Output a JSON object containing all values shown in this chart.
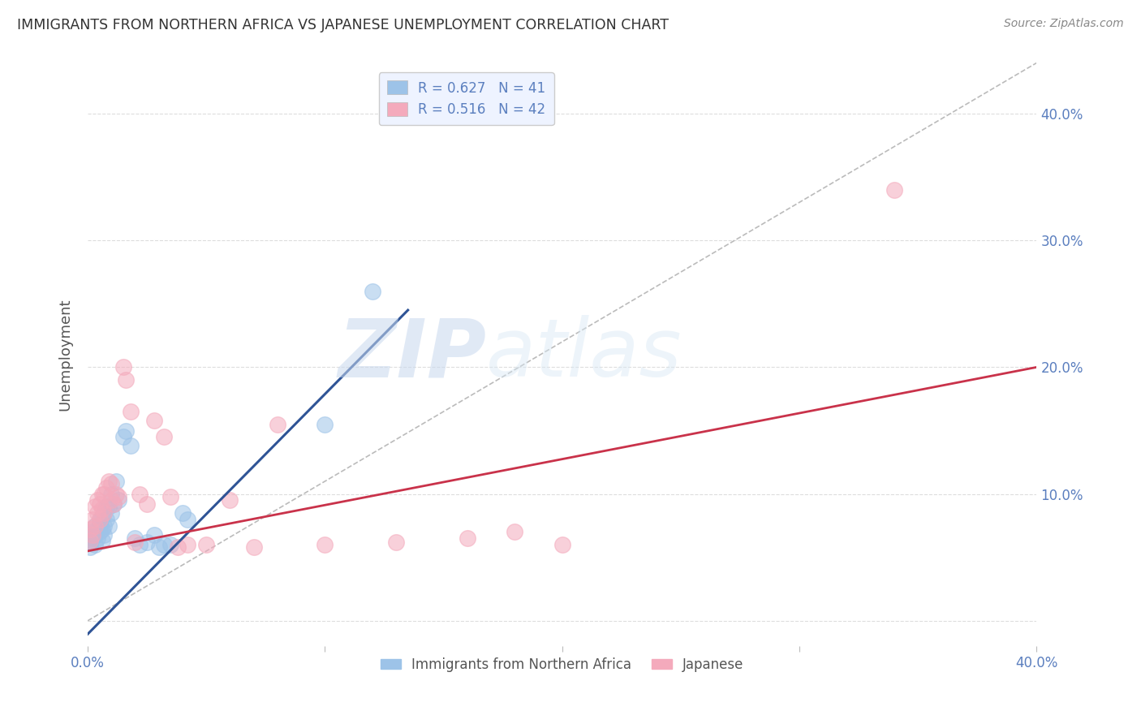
{
  "title": "IMMIGRANTS FROM NORTHERN AFRICA VS JAPANESE UNEMPLOYMENT CORRELATION CHART",
  "source": "Source: ZipAtlas.com",
  "ylabel": "Unemployment",
  "xlim": [
    0,
    0.4
  ],
  "ylim": [
    -0.02,
    0.44
  ],
  "yticks": [
    0.0,
    0.1,
    0.2,
    0.3,
    0.4
  ],
  "ytick_labels": [
    "",
    "10.0%",
    "20.0%",
    "30.0%",
    "40.0%"
  ],
  "xticks": [
    0.0,
    0.1,
    0.2,
    0.3,
    0.4
  ],
  "xtick_labels": [
    "0.0%",
    "",
    "",
    "",
    "40.0%"
  ],
  "blue_R": 0.627,
  "blue_N": 41,
  "pink_R": 0.516,
  "pink_N": 42,
  "blue_color": "#9DC3E8",
  "pink_color": "#F4AABC",
  "blue_line_color": "#2F5496",
  "pink_line_color": "#C9324A",
  "ref_line_color": "#BBBBBB",
  "watermark_zip": "ZIP",
  "watermark_atlas": "atlas",
  "blue_line_x0": -0.005,
  "blue_line_x1": 0.135,
  "blue_line_y0": -0.02,
  "blue_line_y1": 0.245,
  "pink_line_x0": 0.0,
  "pink_line_x1": 0.4,
  "pink_line_y0": 0.055,
  "pink_line_y1": 0.2,
  "ref_line_x0": 0.0,
  "ref_line_x1": 0.4,
  "ref_line_y0": 0.0,
  "ref_line_y1": 0.44,
  "blue_scatter_x": [
    0.001,
    0.001,
    0.002,
    0.002,
    0.003,
    0.003,
    0.003,
    0.004,
    0.004,
    0.005,
    0.005,
    0.005,
    0.006,
    0.006,
    0.006,
    0.007,
    0.007,
    0.007,
    0.008,
    0.008,
    0.009,
    0.009,
    0.01,
    0.01,
    0.011,
    0.012,
    0.013,
    0.015,
    0.016,
    0.018,
    0.02,
    0.022,
    0.025,
    0.028,
    0.03,
    0.032,
    0.035,
    0.04,
    0.042,
    0.12,
    0.1
  ],
  "blue_scatter_y": [
    0.062,
    0.058,
    0.065,
    0.07,
    0.06,
    0.068,
    0.075,
    0.065,
    0.072,
    0.07,
    0.076,
    0.08,
    0.063,
    0.072,
    0.082,
    0.068,
    0.075,
    0.085,
    0.08,
    0.09,
    0.075,
    0.09,
    0.085,
    0.1,
    0.092,
    0.11,
    0.095,
    0.145,
    0.15,
    0.138,
    0.065,
    0.06,
    0.062,
    0.068,
    0.058,
    0.06,
    0.06,
    0.085,
    0.08,
    0.26,
    0.155
  ],
  "pink_scatter_x": [
    0.001,
    0.001,
    0.002,
    0.002,
    0.003,
    0.003,
    0.004,
    0.004,
    0.005,
    0.005,
    0.006,
    0.006,
    0.007,
    0.007,
    0.008,
    0.009,
    0.01,
    0.01,
    0.011,
    0.012,
    0.013,
    0.015,
    0.016,
    0.018,
    0.02,
    0.022,
    0.025,
    0.028,
    0.032,
    0.035,
    0.038,
    0.042,
    0.05,
    0.06,
    0.07,
    0.08,
    0.1,
    0.13,
    0.16,
    0.18,
    0.2,
    0.34
  ],
  "pink_scatter_y": [
    0.063,
    0.072,
    0.068,
    0.08,
    0.075,
    0.09,
    0.085,
    0.095,
    0.08,
    0.092,
    0.088,
    0.1,
    0.085,
    0.1,
    0.105,
    0.11,
    0.095,
    0.108,
    0.092,
    0.1,
    0.098,
    0.2,
    0.19,
    0.165,
    0.062,
    0.1,
    0.092,
    0.158,
    0.145,
    0.098,
    0.058,
    0.06,
    0.06,
    0.095,
    0.058,
    0.155,
    0.06,
    0.062,
    0.065,
    0.07,
    0.06,
    0.34
  ],
  "background_color": "#FFFFFF",
  "grid_color": "#DDDDDD",
  "title_color": "#333333",
  "axis_label_color": "#555555",
  "tick_color": "#5B7FBF",
  "legend_box_color": "#EEF3FF"
}
